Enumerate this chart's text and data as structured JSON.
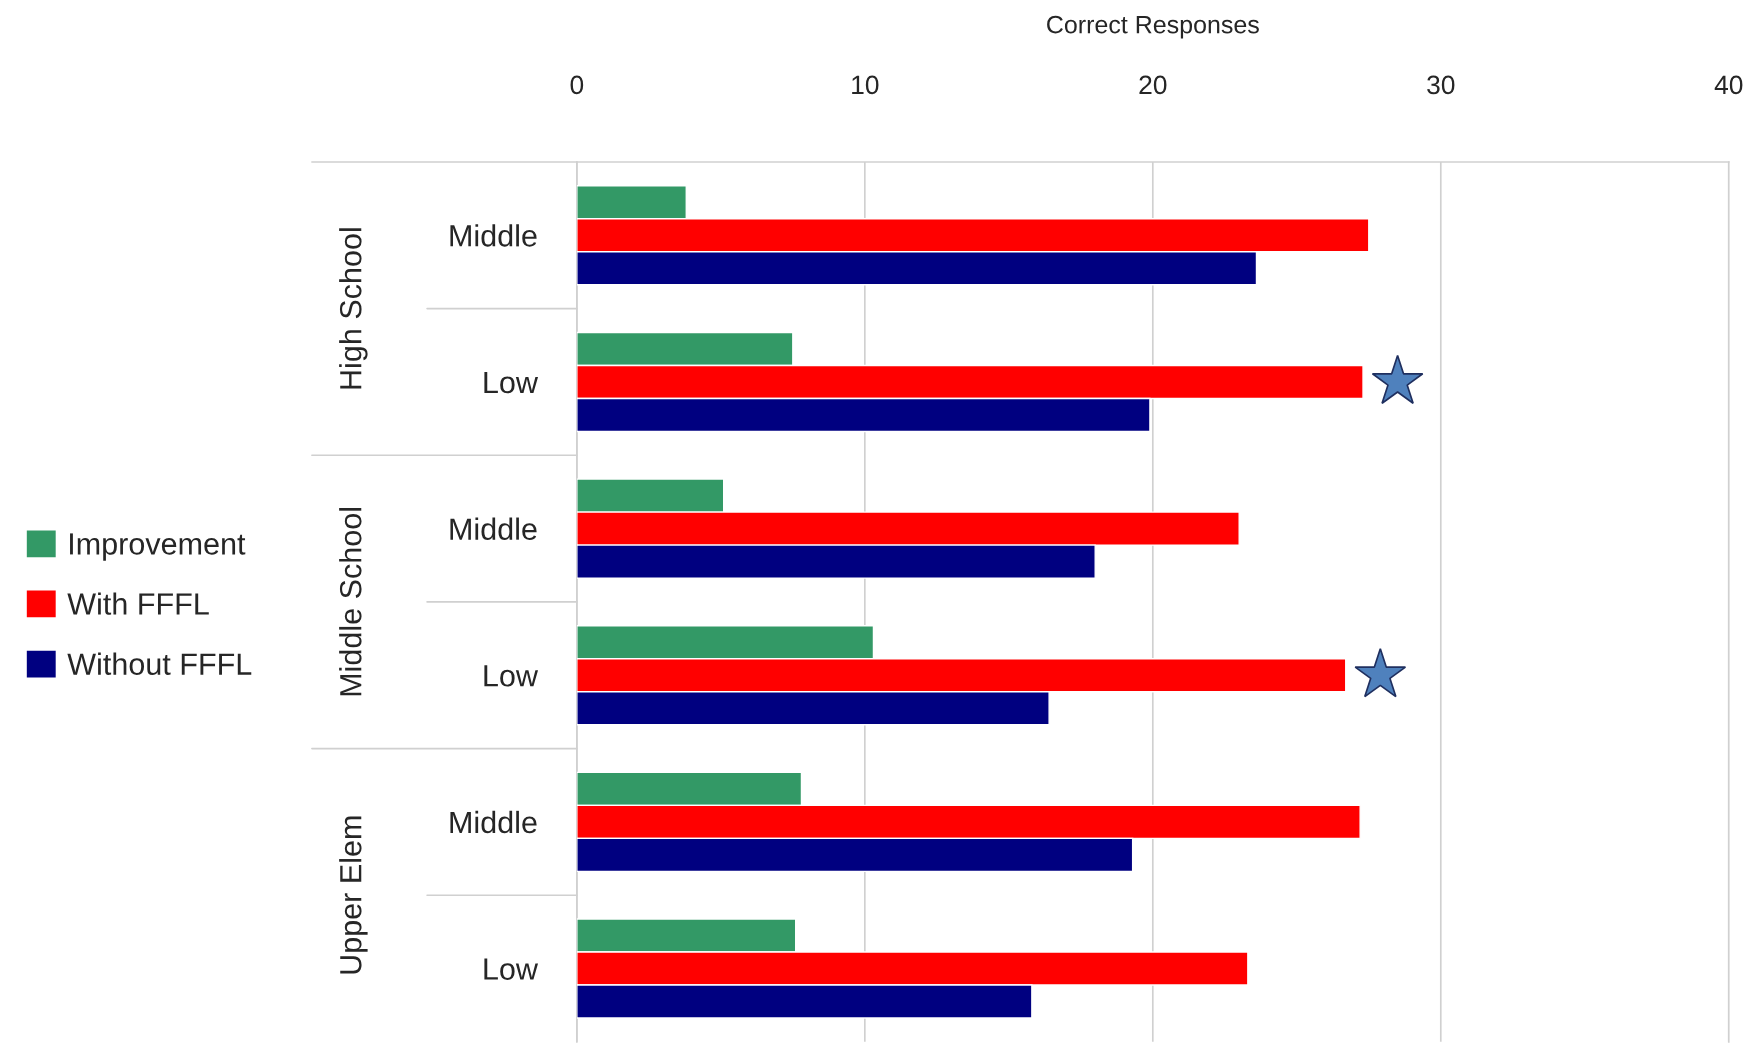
{
  "chart_data": {
    "type": "bar",
    "orientation": "horizontal",
    "xlabel": "Correct Responses",
    "categories": [
      "Middle",
      "Low",
      "Middle",
      "Low",
      "Middle",
      "Low"
    ],
    "annotations": [
      "High School",
      "Middle School",
      "Upper Elem"
    ],
    "series": [
      {
        "name": "Improvement",
        "color": "#339966",
        "values": [
          3.8,
          7.5,
          5.1,
          10.3,
          7.8,
          7.6
        ]
      },
      {
        "name": "With FFFL",
        "color": "#ff0000",
        "values": [
          27.5,
          27.3,
          23.0,
          26.7,
          27.2,
          23.3
        ]
      },
      {
        "name": "Without FFFL",
        "color": "#000080",
        "values": [
          23.6,
          19.9,
          18.0,
          16.4,
          19.3,
          15.8
        ]
      }
    ],
    "xlim": [
      0,
      40
    ],
    "xticks": [
      0,
      10,
      20,
      30,
      40
    ],
    "grid": "x",
    "legend": "left"
  }
}
